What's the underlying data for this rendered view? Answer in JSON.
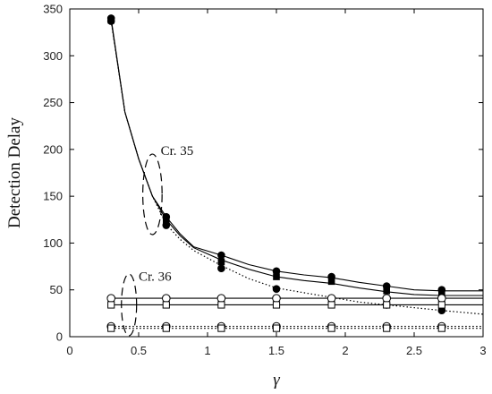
{
  "chart_data": {
    "type": "line",
    "title": "",
    "xlabel": "γ",
    "ylabel": "Detection Delay",
    "xlim": [
      0,
      3
    ],
    "ylim": [
      0,
      350
    ],
    "xticks": [
      "0",
      "0.5",
      "1",
      "1.5",
      "2",
      "2.5",
      "3"
    ],
    "yticks": [
      "0",
      "50",
      "100",
      "150",
      "200",
      "250",
      "300",
      "350"
    ],
    "grid": false,
    "legend": "none",
    "series": [
      {
        "style": "solid",
        "marker": "filled-circle",
        "line": [
          [
            0.3,
            340
          ],
          [
            0.4,
            240
          ],
          [
            0.5,
            190
          ],
          [
            0.6,
            150
          ],
          [
            0.7,
            128
          ],
          [
            0.8,
            110
          ],
          [
            0.9,
            96
          ],
          [
            1.1,
            87
          ],
          [
            1.3,
            77
          ],
          [
            1.5,
            70
          ],
          [
            1.7,
            66
          ],
          [
            1.9,
            63
          ],
          [
            2.1,
            58
          ],
          [
            2.3,
            54
          ],
          [
            2.5,
            50
          ],
          [
            2.7,
            49
          ],
          [
            3.0,
            49
          ]
        ],
        "markers": [
          [
            0.3,
            340
          ],
          [
            0.7,
            128
          ],
          [
            1.1,
            87
          ],
          [
            1.5,
            70
          ],
          [
            1.9,
            64
          ],
          [
            2.3,
            54
          ],
          [
            2.7,
            50
          ]
        ]
      },
      {
        "style": "solid",
        "marker": "filled-square",
        "line": [
          [
            0.3,
            338
          ],
          [
            0.4,
            240
          ],
          [
            0.5,
            190
          ],
          [
            0.6,
            150
          ],
          [
            0.7,
            125
          ],
          [
            0.8,
            108
          ],
          [
            0.9,
            95
          ],
          [
            1.1,
            82
          ],
          [
            1.3,
            72
          ],
          [
            1.5,
            64
          ],
          [
            1.7,
            60
          ],
          [
            1.9,
            57
          ],
          [
            2.1,
            52
          ],
          [
            2.3,
            48
          ],
          [
            2.5,
            45
          ],
          [
            2.7,
            44
          ],
          [
            3.0,
            44
          ]
        ],
        "markers": [
          [
            0.3,
            338
          ],
          [
            0.7,
            123
          ],
          [
            1.1,
            80
          ],
          [
            1.5,
            64
          ],
          [
            1.9,
            59
          ],
          [
            2.3,
            49
          ],
          [
            2.7,
            45
          ]
        ]
      },
      {
        "style": "dotted",
        "marker": "filled-circle",
        "line": [
          [
            0.3,
            337
          ],
          [
            0.4,
            240
          ],
          [
            0.5,
            190
          ],
          [
            0.6,
            150
          ],
          [
            0.7,
            120
          ],
          [
            0.8,
            104
          ],
          [
            0.9,
            92
          ],
          [
            1.1,
            76
          ],
          [
            1.3,
            62
          ],
          [
            1.5,
            52
          ],
          [
            1.7,
            47
          ],
          [
            1.9,
            42
          ],
          [
            2.1,
            37
          ],
          [
            2.3,
            34
          ],
          [
            2.5,
            31
          ],
          [
            2.7,
            28
          ],
          [
            3.0,
            24
          ]
        ],
        "markers": [
          [
            0.3,
            337
          ],
          [
            0.7,
            119
          ],
          [
            1.1,
            73
          ],
          [
            1.5,
            51
          ],
          [
            1.9,
            41
          ],
          [
            2.3,
            34
          ],
          [
            2.7,
            28
          ]
        ]
      },
      {
        "style": "solid",
        "marker": "open-circle",
        "line": [
          [
            0.3,
            41
          ],
          [
            3.0,
            41
          ]
        ],
        "markers": [
          [
            0.3,
            41
          ],
          [
            0.7,
            41
          ],
          [
            1.1,
            41
          ],
          [
            1.5,
            41
          ],
          [
            1.9,
            41
          ],
          [
            2.3,
            41
          ],
          [
            2.7,
            41
          ]
        ]
      },
      {
        "style": "solid",
        "marker": "open-square",
        "line": [
          [
            0.3,
            34
          ],
          [
            3.0,
            34
          ]
        ],
        "markers": [
          [
            0.3,
            34
          ],
          [
            0.7,
            34
          ],
          [
            1.1,
            34
          ],
          [
            1.5,
            34
          ],
          [
            1.9,
            34
          ],
          [
            2.3,
            34
          ],
          [
            2.7,
            34
          ]
        ]
      },
      {
        "style": "dotted",
        "marker": "open-circle",
        "line": [
          [
            0.3,
            11
          ],
          [
            3.0,
            11
          ]
        ],
        "markers": [
          [
            0.3,
            11
          ],
          [
            0.7,
            11
          ],
          [
            1.1,
            11
          ],
          [
            1.5,
            11
          ],
          [
            1.9,
            11
          ],
          [
            2.3,
            11
          ],
          [
            2.7,
            11
          ]
        ]
      },
      {
        "style": "dotted",
        "marker": "open-square",
        "line": [
          [
            0.3,
            9
          ],
          [
            3.0,
            9
          ]
        ],
        "markers": [
          [
            0.3,
            9
          ],
          [
            0.7,
            9
          ],
          [
            1.1,
            9
          ],
          [
            1.5,
            9
          ],
          [
            1.9,
            9
          ],
          [
            2.3,
            9
          ],
          [
            2.7,
            9
          ]
        ]
      }
    ],
    "annotations": [
      {
        "label": "Cr. 35",
        "center": [
          0.6,
          152
        ],
        "rx": 0.07,
        "ry": 43,
        "anchor": [
          0.66,
          194
        ]
      },
      {
        "label": "Cr. 36",
        "center": [
          0.43,
          34
        ],
        "rx": 0.055,
        "ry": 33,
        "anchor": [
          0.5,
          60
        ]
      }
    ]
  }
}
